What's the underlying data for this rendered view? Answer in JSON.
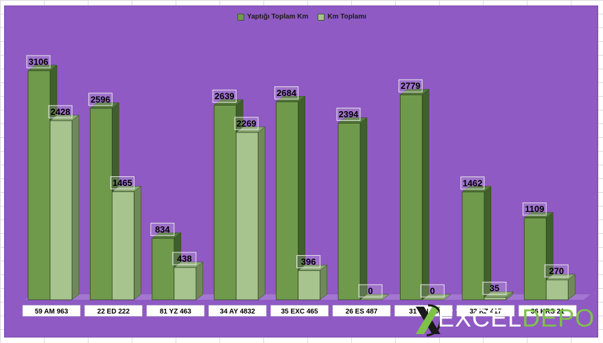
{
  "colors": {
    "plot_bg": "#8f5ac4",
    "series_dark": "#6f9a4b",
    "series_light": "#a8c48e",
    "brand_green": "#7fc24a"
  },
  "legend": {
    "series1": "Yaptığı Toplam Km",
    "series2": "Km Toplamı"
  },
  "logo": {
    "part1": "EXCEL",
    "part2": "DEPO",
    "icon": "x-logo-icon"
  },
  "chart_data": {
    "type": "bar",
    "categories": [
      "59 AM 963",
      "22 ED 222",
      "81 YZ 463",
      "34 AY 4832",
      "35 EXC 465",
      "26 ES 487",
      "31 CN 34",
      "32 KZ 417",
      "36 KRS 21"
    ],
    "series": [
      {
        "name": "Yaptığı Toplam Km",
        "values": [
          3106,
          2596,
          834,
          2639,
          2684,
          2394,
          2779,
          1462,
          1109
        ]
      },
      {
        "name": "Km Toplamı",
        "values": [
          2428,
          1465,
          438,
          2269,
          396,
          0,
          0,
          35,
          270
        ]
      }
    ],
    "ylim": [
      0,
      3106
    ],
    "data_labels": true,
    "legend_position": "top",
    "style": "3d-column"
  }
}
